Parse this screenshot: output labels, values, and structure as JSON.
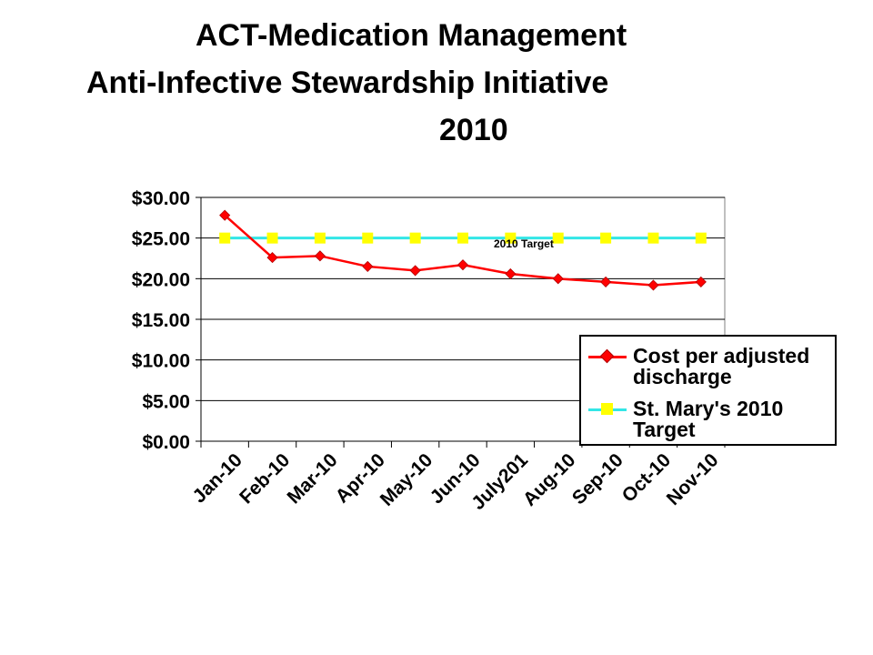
{
  "title_lines": [
    "ACT-Medication Management",
    "Anti-Infective Stewardship Initiative",
    "2010"
  ],
  "chart_data": {
    "type": "line",
    "categories": [
      "Jan-10",
      "Feb-10",
      "Mar-10",
      "Apr-10",
      "May-10",
      "Jun-10",
      "July201",
      "Aug-10",
      "Sep-10",
      "Oct-10",
      "Nov-10"
    ],
    "ylim": [
      0,
      30
    ],
    "yticks": [
      "$0.00",
      "$5.00",
      "$10.00",
      "$15.00",
      "$20.00",
      "$25.00",
      "$30.00"
    ],
    "grid": true,
    "legend_position": "right",
    "annotation": "2010 Target",
    "series": [
      {
        "name": "Cost per adjusted discharge",
        "color": "#ff0000",
        "marker": "diamond",
        "values": [
          27.8,
          22.6,
          22.8,
          21.5,
          21.0,
          21.7,
          20.6,
          20.0,
          19.6,
          19.2,
          19.6
        ]
      },
      {
        "name": "St. Mary's 2010 Target",
        "color": "#33e6e6",
        "marker_color": "#ffff00",
        "marker": "square",
        "values": [
          25,
          25,
          25,
          25,
          25,
          25,
          25,
          25,
          25,
          25,
          25
        ]
      }
    ]
  }
}
